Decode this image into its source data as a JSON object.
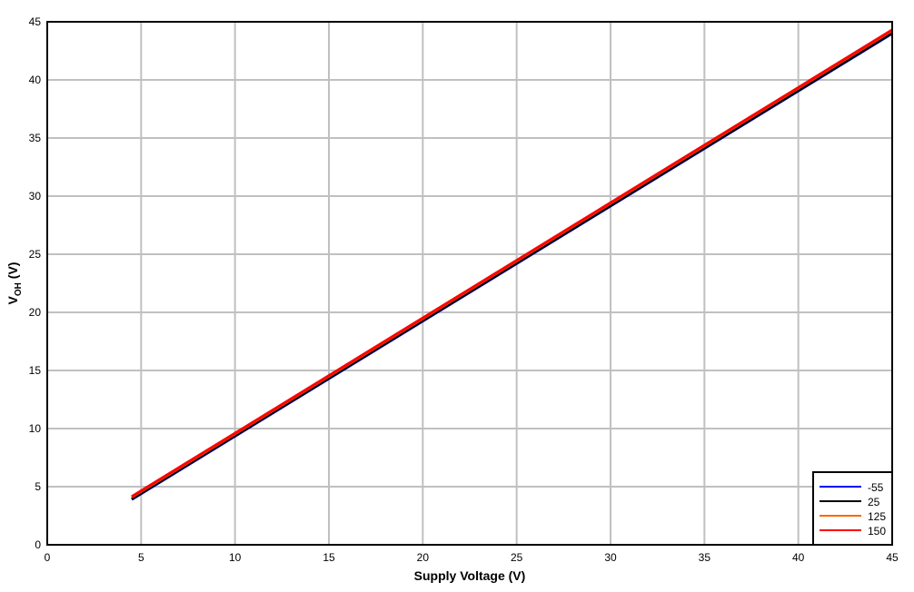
{
  "chart_data": {
    "type": "line",
    "title": "",
    "xlabel": "Supply Voltage (V)",
    "ylabel_main": "V",
    "ylabel_sub": "OH",
    "ylabel_unit": " (V)",
    "xlim": [
      0,
      45
    ],
    "ylim": [
      0,
      45
    ],
    "xticks": [
      0,
      5,
      10,
      15,
      20,
      25,
      30,
      35,
      40,
      45
    ],
    "yticks": [
      0,
      5,
      10,
      15,
      20,
      25,
      30,
      35,
      40,
      45
    ],
    "grid": true,
    "legend_placement": "bottom-right",
    "series": [
      {
        "name": "-55",
        "color": "#0000ff",
        "x": [
          4.5,
          45
        ],
        "y": [
          3.9,
          44.0
        ]
      },
      {
        "name": "25",
        "color": "#000000",
        "x": [
          4.5,
          45
        ],
        "y": [
          3.95,
          44.05
        ]
      },
      {
        "name": "125",
        "color": "#ff6600",
        "x": [
          4.5,
          45
        ],
        "y": [
          4.1,
          44.25
        ]
      },
      {
        "name": "150",
        "color": "#ff0000",
        "x": [
          4.5,
          45
        ],
        "y": [
          4.15,
          44.3
        ]
      }
    ]
  }
}
